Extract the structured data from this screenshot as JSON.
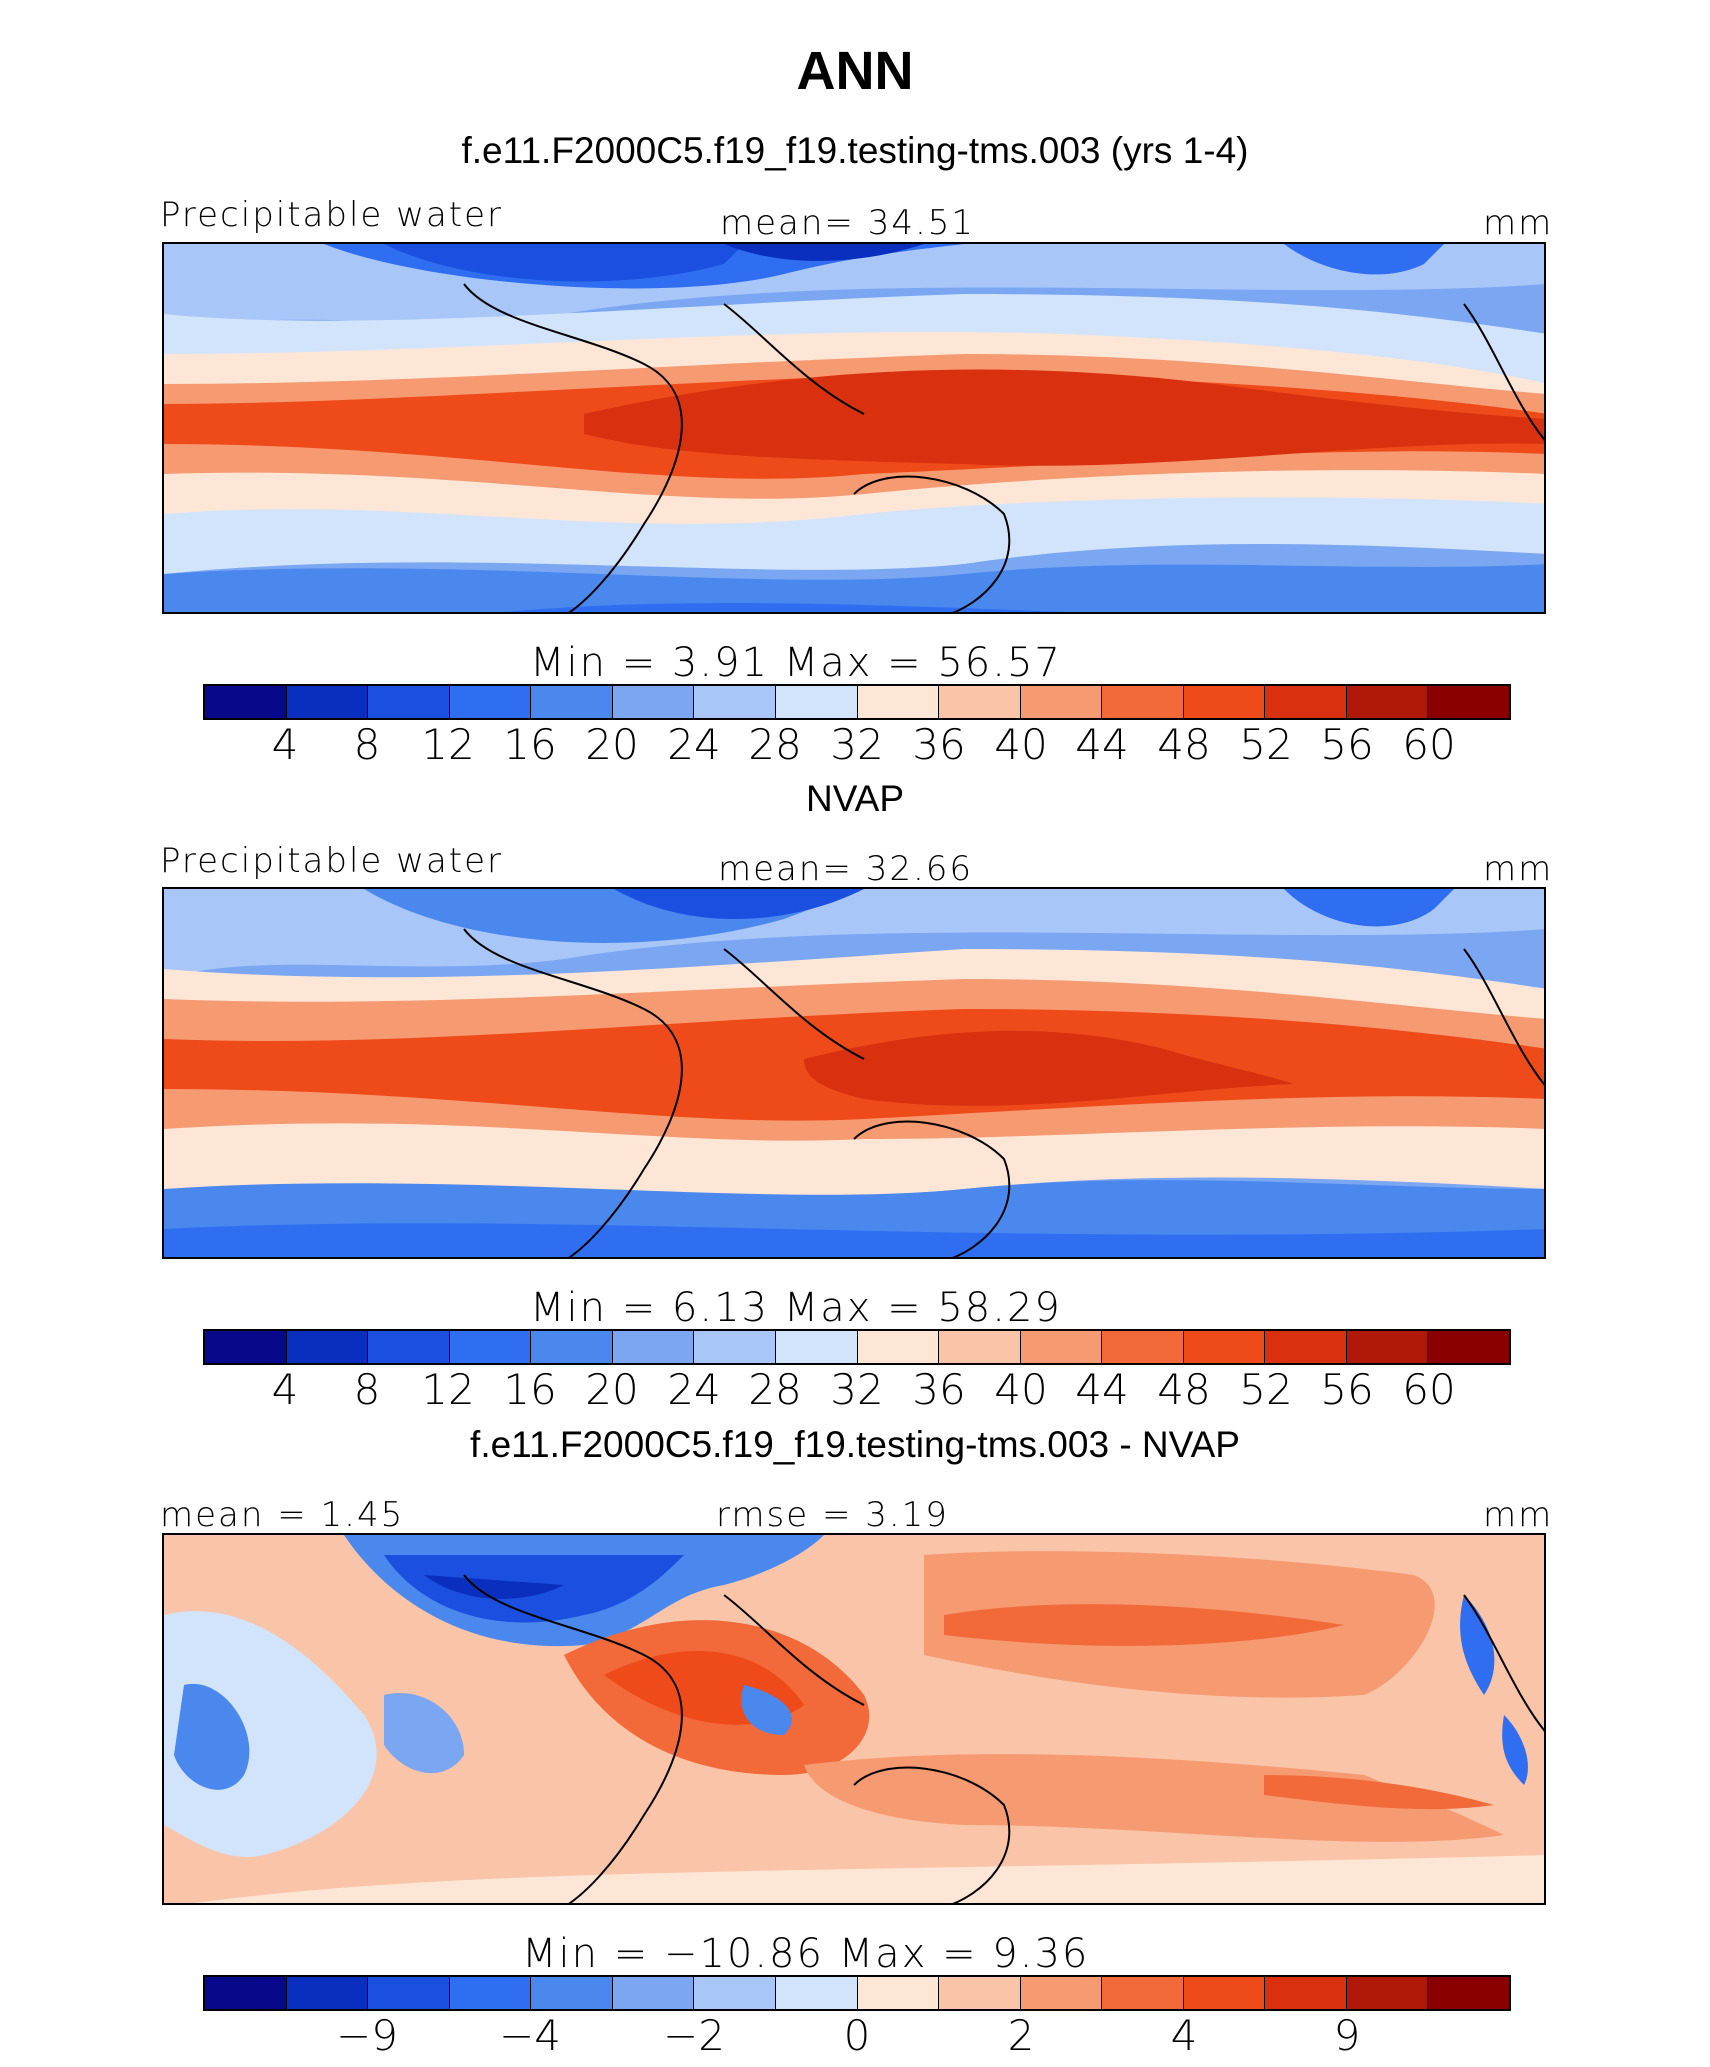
{
  "title": "ANN",
  "palette": [
    "#08088a",
    "#0a2fbf",
    "#1a4fe0",
    "#2f6ef0",
    "#4a88ee",
    "#7aa6f2",
    "#a8c6f8",
    "#d2e4fb",
    "#fde6d6",
    "#fac4a8",
    "#f69a72",
    "#f26a3a",
    "#ee4a1a",
    "#d93010",
    "#b01808",
    "#8a0000"
  ],
  "panels": [
    {
      "id": "model",
      "subtitle": "f.e11.F2000C5.f19_f19.testing-tms.003 (yrs 1-4)",
      "left_label": "Precipitable water",
      "center_label": "mean=   34.51",
      "units": "mm",
      "minmax": "Min  =     3.91  Max  =    56.57",
      "ticks": [
        "4",
        "8",
        "12",
        "16",
        "20",
        "24",
        "28",
        "32",
        "36",
        "40",
        "44",
        "48",
        "52",
        "56",
        "60"
      ]
    },
    {
      "id": "obs",
      "subtitle": "NVAP",
      "left_label": "Precipitable water",
      "center_label": "mean=   32.66",
      "units": "mm",
      "minmax": "Min  =     6.13  Max  =    58.29",
      "ticks": [
        "4",
        "8",
        "12",
        "16",
        "20",
        "24",
        "28",
        "32",
        "36",
        "40",
        "44",
        "48",
        "52",
        "56",
        "60"
      ]
    },
    {
      "id": "diff",
      "subtitle": "f.e11.F2000C5.f19_f19.testing-tms.003 - NVAP",
      "left_label": "mean  =    1.45",
      "center_label": "rmse  =     3.19",
      "units": "mm",
      "minmax": "Min  = −10.86  Max  =     9.36",
      "ticks": [
        "−9",
        "−4",
        "−2",
        "0",
        "2",
        "4",
        "9"
      ]
    }
  ]
}
